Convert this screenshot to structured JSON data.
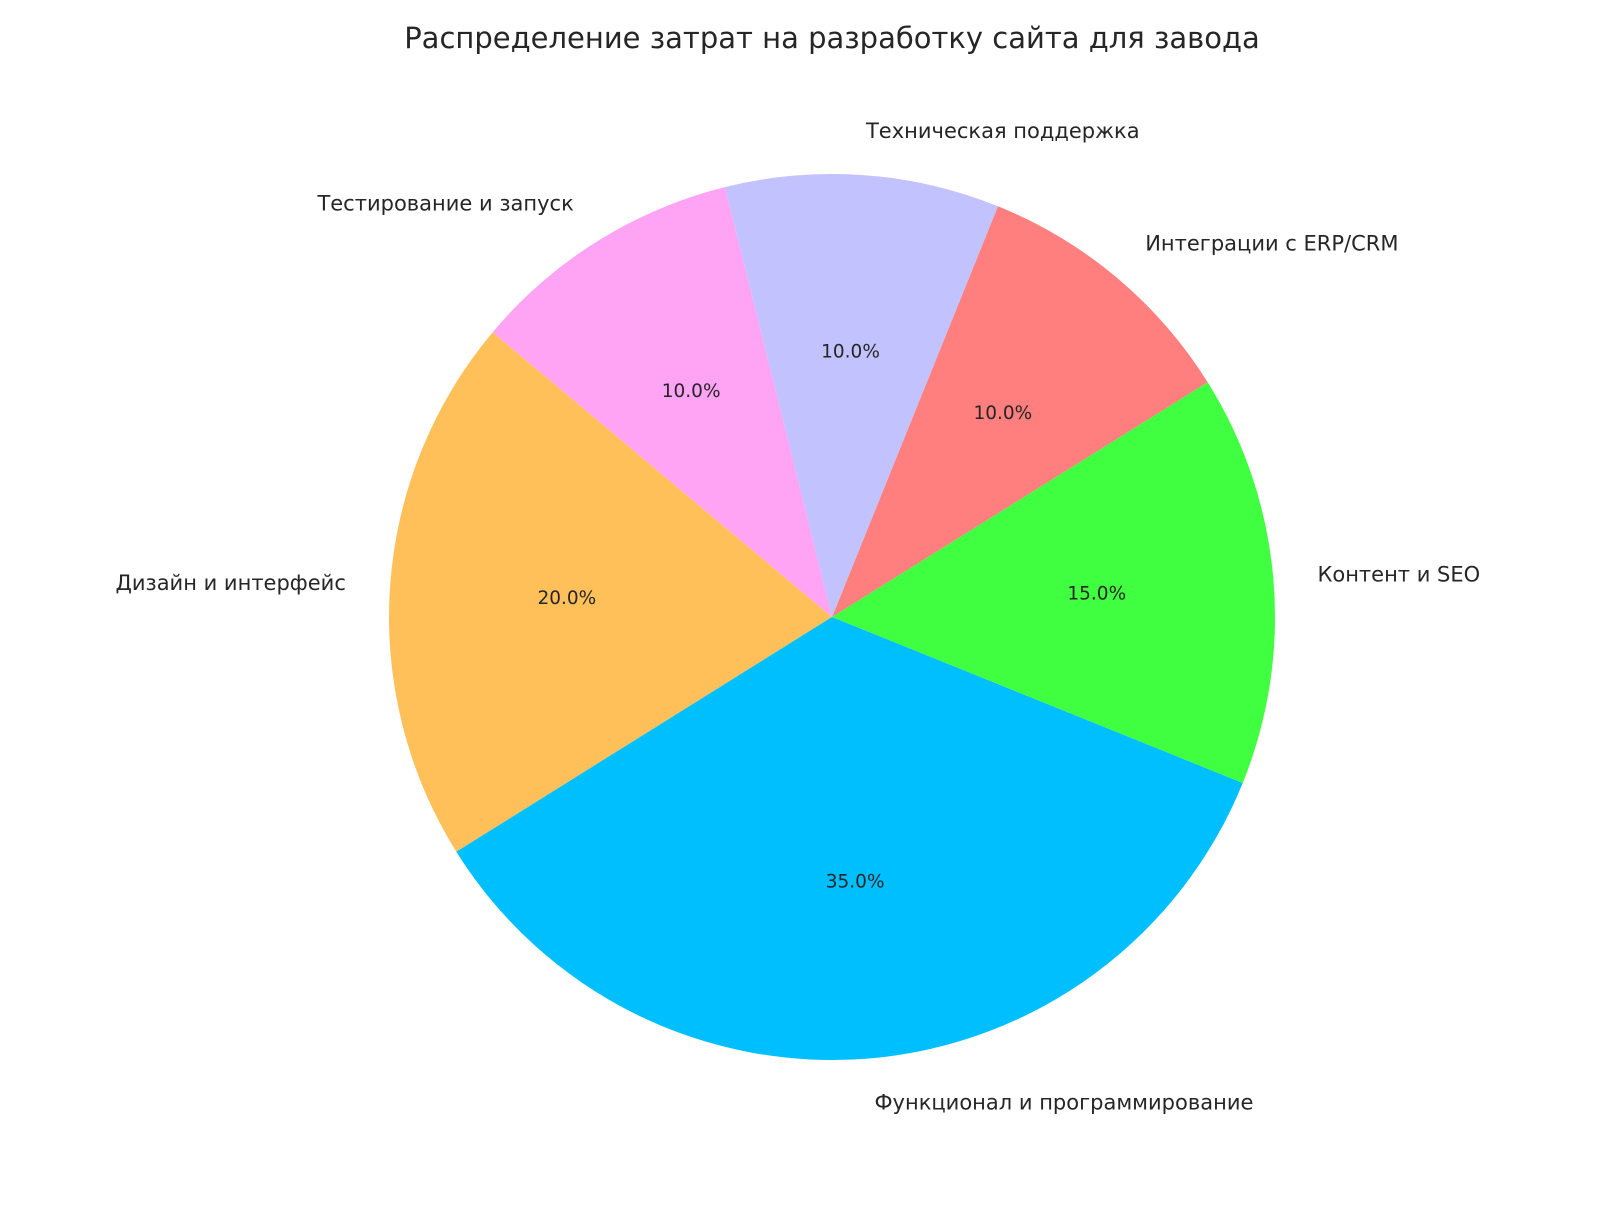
{
  "chart_data": {
    "type": "pie",
    "title": "Распределение затрат на разработку сайта для завода",
    "start_angle_deg": 140,
    "direction": "counterclockwise",
    "slices": [
      {
        "label": "Дизайн и интерфейс",
        "value": 20,
        "pct_label": "20.0%",
        "color": "#FFC05A"
      },
      {
        "label": "Функционал и программирование",
        "value": 35,
        "pct_label": "35.0%",
        "color": "#00BFFF"
      },
      {
        "label": "Контент и SEO",
        "value": 15,
        "pct_label": "15.0%",
        "color": "#40FF40"
      },
      {
        "label": "Интеграции с ERP/CRM",
        "value": 10,
        "pct_label": "10.0%",
        "color": "#FF7F7F"
      },
      {
        "label": "Техническая поддержка",
        "value": 10,
        "pct_label": "10.0%",
        "color": "#C2C2FF"
      },
      {
        "label": "Тестирование и запуск",
        "value": 10,
        "pct_label": "10.0%",
        "color": "#FFA3F5"
      }
    ]
  }
}
